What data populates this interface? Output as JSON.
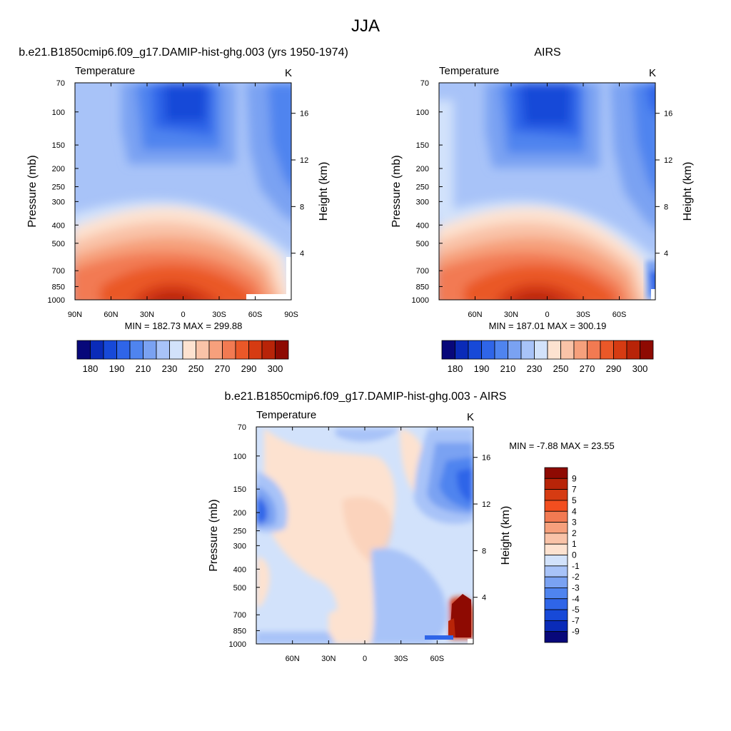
{
  "page_title": "JJA",
  "chart_data": [
    {
      "type": "heatmap",
      "title": "b.e21.B1850cmip6.f09_g17.DAMIP-hist-ghg.003 (yrs 1950-1974)",
      "left_label": "Temperature",
      "right_label": "K",
      "xlabel": "",
      "ylabel": "Pressure (mb)",
      "ylabel_right": "Height (km)",
      "x_ticks": [
        "90N",
        "60N",
        "30N",
        "0",
        "30S",
        "60S",
        "90S"
      ],
      "x_tick_values": [
        90,
        60,
        30,
        0,
        -30,
        -60,
        -90
      ],
      "xlim": [
        90,
        -90
      ],
      "y_ticks": [
        "70",
        "100",
        "150",
        "200",
        "250",
        "300",
        "400",
        "500",
        "700",
        "850",
        "1000"
      ],
      "y_tick_values": [
        70,
        100,
        150,
        200,
        250,
        300,
        400,
        500,
        700,
        850,
        1000
      ],
      "ylim": [
        1000,
        70
      ],
      "y_scale": "log",
      "height_ticks": [
        "4",
        "8",
        "12",
        "16"
      ],
      "height_tick_values": [
        4,
        8,
        12,
        16
      ],
      "stats": "MIN = 182.73  MAX = 299.88",
      "colorbar": {
        "orientation": "horizontal",
        "colors": [
          "#08087a",
          "#0a2bb8",
          "#1749d8",
          "#2f65e8",
          "#4f84ef",
          "#7aa2f2",
          "#a8c3f8",
          "#d2e2fb",
          "#fde2d0",
          "#f9c3a8",
          "#f6a07c",
          "#f27a52",
          "#ea5828",
          "#d63b12",
          "#b82408",
          "#8e0a02"
        ],
        "tick_labels": [
          "180",
          "190",
          "210",
          "230",
          "250",
          "270",
          "290",
          "300"
        ]
      }
    },
    {
      "type": "heatmap",
      "title": "AIRS",
      "left_label": "Temperature",
      "right_label": "K",
      "xlabel": "",
      "ylabel": "Pressure (mb)",
      "ylabel_right": "Height (km)",
      "x_ticks": [
        "60N",
        "30N",
        "0",
        "30S",
        "60S"
      ],
      "x_tick_values": [
        60,
        30,
        0,
        -30,
        -60
      ],
      "xlim": [
        90,
        -90
      ],
      "y_ticks": [
        "70",
        "100",
        "150",
        "200",
        "250",
        "300",
        "400",
        "500",
        "700",
        "850",
        "1000"
      ],
      "y_tick_values": [
        70,
        100,
        150,
        200,
        250,
        300,
        400,
        500,
        700,
        850,
        1000
      ],
      "ylim": [
        1000,
        70
      ],
      "y_scale": "log",
      "height_ticks": [
        "4",
        "8",
        "12",
        "16"
      ],
      "height_tick_values": [
        4,
        8,
        12,
        16
      ],
      "stats": "MIN = 187.01  MAX = 300.19",
      "colorbar": {
        "orientation": "horizontal",
        "colors": [
          "#08087a",
          "#0a2bb8",
          "#1749d8",
          "#2f65e8",
          "#4f84ef",
          "#7aa2f2",
          "#a8c3f8",
          "#d2e2fb",
          "#fde2d0",
          "#f9c3a8",
          "#f6a07c",
          "#f27a52",
          "#ea5828",
          "#d63b12",
          "#b82408",
          "#8e0a02"
        ],
        "tick_labels": [
          "180",
          "190",
          "210",
          "230",
          "250",
          "270",
          "290",
          "300"
        ]
      }
    },
    {
      "type": "heatmap",
      "title": "b.e21.B1850cmip6.f09_g17.DAMIP-hist-ghg.003 - AIRS",
      "left_label": "Temperature",
      "right_label": "K",
      "xlabel": "",
      "ylabel": "Pressure (mb)",
      "ylabel_right": "Height (km)",
      "x_ticks": [
        "60N",
        "30N",
        "0",
        "30S",
        "60S"
      ],
      "x_tick_values": [
        60,
        30,
        0,
        -30,
        -60
      ],
      "xlim": [
        90,
        -90
      ],
      "y_ticks": [
        "70",
        "100",
        "150",
        "200",
        "250",
        "300",
        "400",
        "500",
        "700",
        "850",
        "1000"
      ],
      "y_tick_values": [
        70,
        100,
        150,
        200,
        250,
        300,
        400,
        500,
        700,
        850,
        1000
      ],
      "ylim": [
        1000,
        70
      ],
      "y_scale": "log",
      "height_ticks": [
        "4",
        "8",
        "12",
        "16"
      ],
      "height_tick_values": [
        4,
        8,
        12,
        16
      ],
      "stats": "MIN =  -7.88  MAX =  23.55",
      "colorbar": {
        "orientation": "vertical",
        "colors": [
          "#8e0a02",
          "#b82408",
          "#d63b12",
          "#f24e1f",
          "#f27a52",
          "#f6a07c",
          "#f9c3a8",
          "#fde2d0",
          "#d2e2fb",
          "#a8c3f8",
          "#7aa2f2",
          "#4f84ef",
          "#2f65e8",
          "#1749d8",
          "#0a2bb8",
          "#08087a"
        ],
        "tick_labels": [
          "9",
          "7",
          "5",
          "4",
          "3",
          "2",
          "1",
          "0",
          "-1",
          "-2",
          "-3",
          "-4",
          "-5",
          "-7",
          "-9"
        ]
      }
    }
  ]
}
